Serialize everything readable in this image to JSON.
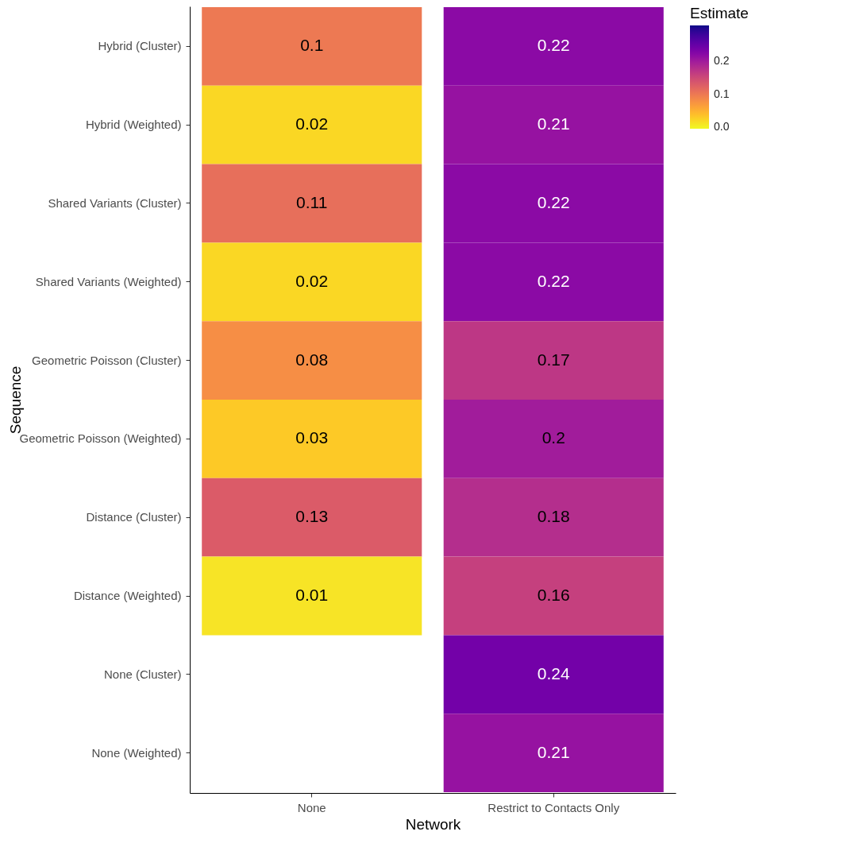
{
  "chart_data": {
    "type": "heatmap",
    "xlabel": "Network",
    "ylabel": "Sequence",
    "clabel": "Estimate",
    "categories": [
      "None",
      "Restrict to Contacts Only"
    ],
    "y_categories": [
      "Hybrid (Cluster)",
      "Hybrid (Weighted)",
      "Shared Variants (Cluster)",
      "Shared Variants (Weighted)",
      "Geometric Poisson (Cluster)",
      "Geometric Poisson (Weighted)",
      "Distance (Cluster)",
      "Distance (Weighted)",
      "None (Cluster)",
      "None (Weighted)"
    ],
    "cells": [
      [
        0.1,
        0.22
      ],
      [
        0.02,
        0.21
      ],
      [
        0.11,
        0.22
      ],
      [
        0.02,
        0.22
      ],
      [
        0.08,
        0.17
      ],
      [
        0.03,
        0.2
      ],
      [
        0.13,
        0.18
      ],
      [
        0.01,
        0.16
      ],
      [
        null,
        0.24
      ],
      [
        null,
        0.21
      ]
    ],
    "clim": [
      -0.005,
      0.31
    ],
    "cticks": [
      {
        "value": 0,
        "label": "0.0"
      },
      0.1,
      0.2
    ],
    "data_labels": true,
    "grid": false
  }
}
